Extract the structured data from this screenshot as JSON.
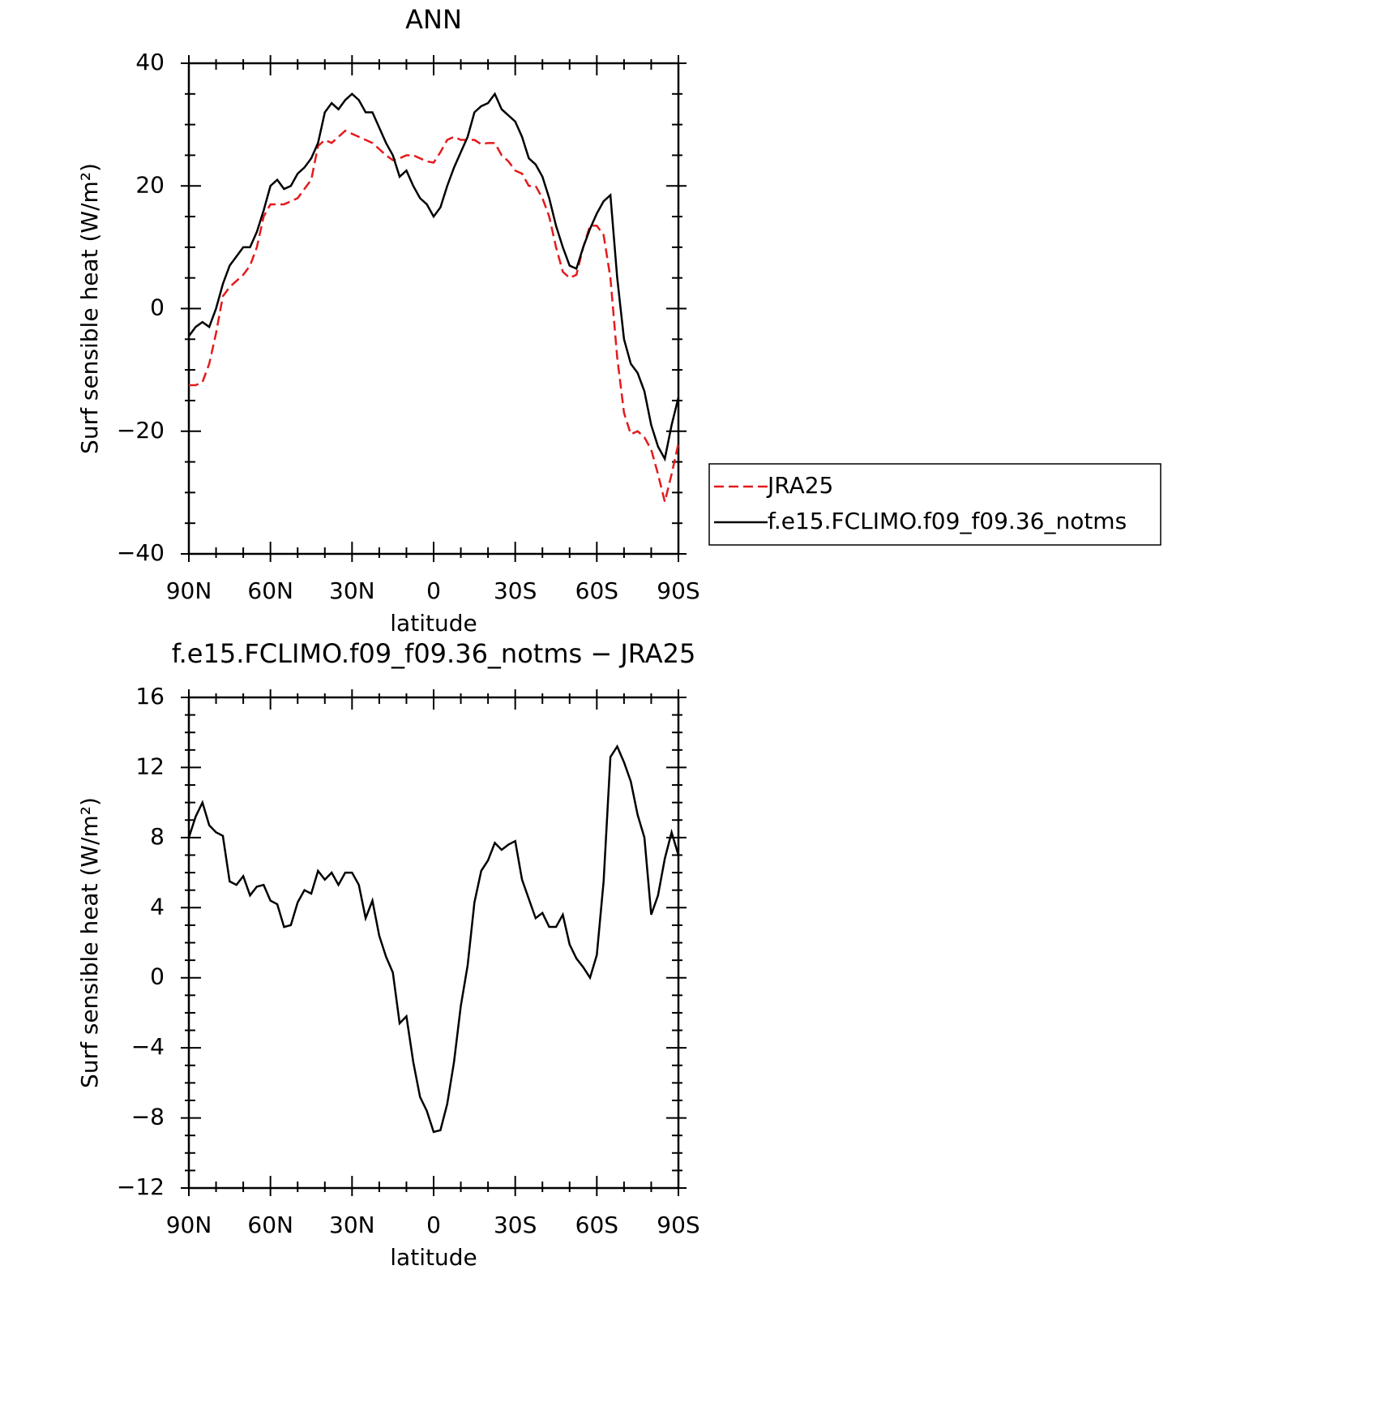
{
  "chart_data": [
    {
      "type": "line",
      "title": "ANN",
      "xlabel": "latitude",
      "ylabel": "Surf sensible heat (W/m²)",
      "x": [
        90,
        87.5,
        85,
        82.5,
        80,
        77.5,
        75,
        72.5,
        70,
        67.5,
        65,
        62.5,
        60,
        57.5,
        55,
        52.5,
        50,
        47.5,
        45,
        42.5,
        40,
        37.5,
        35,
        32.5,
        30,
        27.5,
        25,
        22.5,
        20,
        17.5,
        15,
        12.5,
        10,
        7.5,
        5,
        2.5,
        0,
        -2.5,
        -5,
        -7.5,
        -10,
        -12.5,
        -15,
        -17.5,
        -20,
        -22.5,
        -25,
        -27.5,
        -30,
        -32.5,
        -35,
        -37.5,
        -40,
        -42.5,
        -45,
        -47.5,
        -50,
        -52.5,
        -55,
        -57.5,
        -60,
        -62.5,
        -65,
        -67.5,
        -70,
        -72.5,
        -75,
        -77.5,
        -80,
        -82.5,
        -85,
        -87.5,
        -90
      ],
      "series": [
        {
          "name": "JRA25",
          "color": "#e41a1c",
          "dash": true,
          "values": [
            -12.5,
            -12.5,
            -12,
            -9,
            -4,
            2,
            3.5,
            4.5,
            5.5,
            7,
            10,
            15,
            17,
            17,
            17,
            17.5,
            18,
            19.5,
            21,
            26.5,
            27.5,
            27,
            28,
            29,
            28.5,
            28,
            27.5,
            27,
            26,
            25,
            24.2,
            24.5,
            25,
            25,
            24.5,
            24,
            23.8,
            25.5,
            27.5,
            28,
            27.5,
            27.5,
            27.5,
            26.8,
            27,
            27,
            25,
            24,
            22.5,
            22,
            20,
            20,
            18,
            15,
            10,
            6,
            5,
            5.5,
            10,
            13.5,
            13.5,
            12,
            5,
            -8,
            -17,
            -20.5,
            -20,
            -21,
            -23,
            -27,
            -31.5,
            -27,
            -22
          ]
        },
        {
          "name": "f.e15.FCLIMO.f09_f09.36_notms",
          "color": "#000000",
          "dash": false,
          "values": [
            -4.5,
            -3,
            -2.2,
            -3,
            0,
            4,
            7,
            8.5,
            10,
            10,
            12.5,
            16,
            20,
            21,
            19.5,
            20,
            22,
            23,
            24.5,
            27,
            32,
            33.5,
            32.5,
            34,
            35,
            34,
            32,
            32,
            29.5,
            27,
            25,
            21.5,
            22.5,
            20,
            18,
            17,
            15,
            16.5,
            20,
            23,
            25.5,
            28,
            32,
            33,
            33.5,
            35,
            32.5,
            31.5,
            30.5,
            28,
            24.5,
            23.5,
            21.5,
            18,
            13.5,
            10,
            7,
            6.5,
            10,
            13,
            15.5,
            17.5,
            18.5,
            5,
            -5,
            -9,
            -10.5,
            -13.5,
            -19,
            -22.5,
            -24.5,
            -19,
            -14.5
          ]
        }
      ],
      "xlim": [
        90,
        -90
      ],
      "xticks": [
        {
          "value": 90,
          "label": "90N"
        },
        {
          "value": 60,
          "label": "60N"
        },
        {
          "value": 30,
          "label": "30N"
        },
        0,
        {
          "value": -30,
          "label": "30S"
        },
        {
          "value": -60,
          "label": "60S"
        },
        {
          "value": -90,
          "label": "90S"
        }
      ],
      "ylim": [
        -40,
        40
      ],
      "yticks": [
        {
          "value": 40,
          "label": "40"
        },
        20,
        0,
        {
          "value": -20,
          "label": "−20"
        },
        {
          "value": -40,
          "label": "−40"
        }
      ],
      "legend": "right"
    },
    {
      "type": "line",
      "title": "f.e15.FCLIMO.f09_f09.36_notms − JRA25",
      "xlabel": "latitude",
      "ylabel": "Surf sensible heat (W/m²)",
      "x": [
        90,
        87.5,
        85,
        82.5,
        80,
        77.5,
        75,
        72.5,
        70,
        67.5,
        65,
        62.5,
        60,
        57.5,
        55,
        52.5,
        50,
        47.5,
        45,
        42.5,
        40,
        37.5,
        35,
        32.5,
        30,
        27.5,
        25,
        22.5,
        20,
        17.5,
        15,
        12.5,
        10,
        7.5,
        5,
        2.5,
        0,
        -2.5,
        -5,
        -7.5,
        -10,
        -12.5,
        -15,
        -17.5,
        -20,
        -22.5,
        -25,
        -27.5,
        -30,
        -32.5,
        -35,
        -37.5,
        -40,
        -42.5,
        -45,
        -47.5,
        -50,
        -52.5,
        -55,
        -57.5,
        -60,
        -62.5,
        -65,
        -67.5,
        -70,
        -72.5,
        -75,
        -77.5,
        -80,
        -82.5,
        -85,
        -87.5,
        -90
      ],
      "series": [
        {
          "color": "#000000",
          "dash": false,
          "values": [
            8,
            9.2,
            10,
            8.7,
            8.3,
            8.1,
            5.5,
            5.3,
            5.8,
            4.7,
            5.2,
            5.3,
            4.4,
            4.2,
            2.9,
            3,
            4.3,
            5,
            4.8,
            6.1,
            5.6,
            6,
            5.3,
            6,
            6,
            5.3,
            3.4,
            4.4,
            2.4,
            1.2,
            0.3,
            -2.6,
            -2.2,
            -4.8,
            -6.8,
            -7.6,
            -8.8,
            -8.7,
            -7.2,
            -4.8,
            -1.6,
            0.7,
            4.3,
            6.1,
            6.7,
            7.7,
            7.3,
            7.6,
            7.8,
            5.6,
            4.5,
            3.4,
            3.7,
            2.9,
            2.9,
            3.6,
            1.9,
            1.1,
            0.6,
            0,
            1.3,
            5.5,
            12.6,
            13.2,
            12.3,
            11.2,
            9.3,
            8,
            3.6,
            4.7,
            6.8,
            8.3,
            7
          ]
        }
      ],
      "xlim": [
        90,
        -90
      ],
      "xticks": [
        {
          "value": 90,
          "label": "90N"
        },
        {
          "value": 60,
          "label": "60N"
        },
        {
          "value": 30,
          "label": "30N"
        },
        0,
        {
          "value": -30,
          "label": "30S"
        },
        {
          "value": -60,
          "label": "60S"
        },
        {
          "value": -90,
          "label": "90S"
        }
      ],
      "ylim": [
        -12,
        16
      ],
      "yticks": [
        16,
        12,
        8,
        4,
        0,
        {
          "value": -4,
          "label": "−4"
        },
        {
          "value": -8,
          "label": "−8"
        },
        {
          "value": -12,
          "label": "−12"
        }
      ]
    }
  ]
}
